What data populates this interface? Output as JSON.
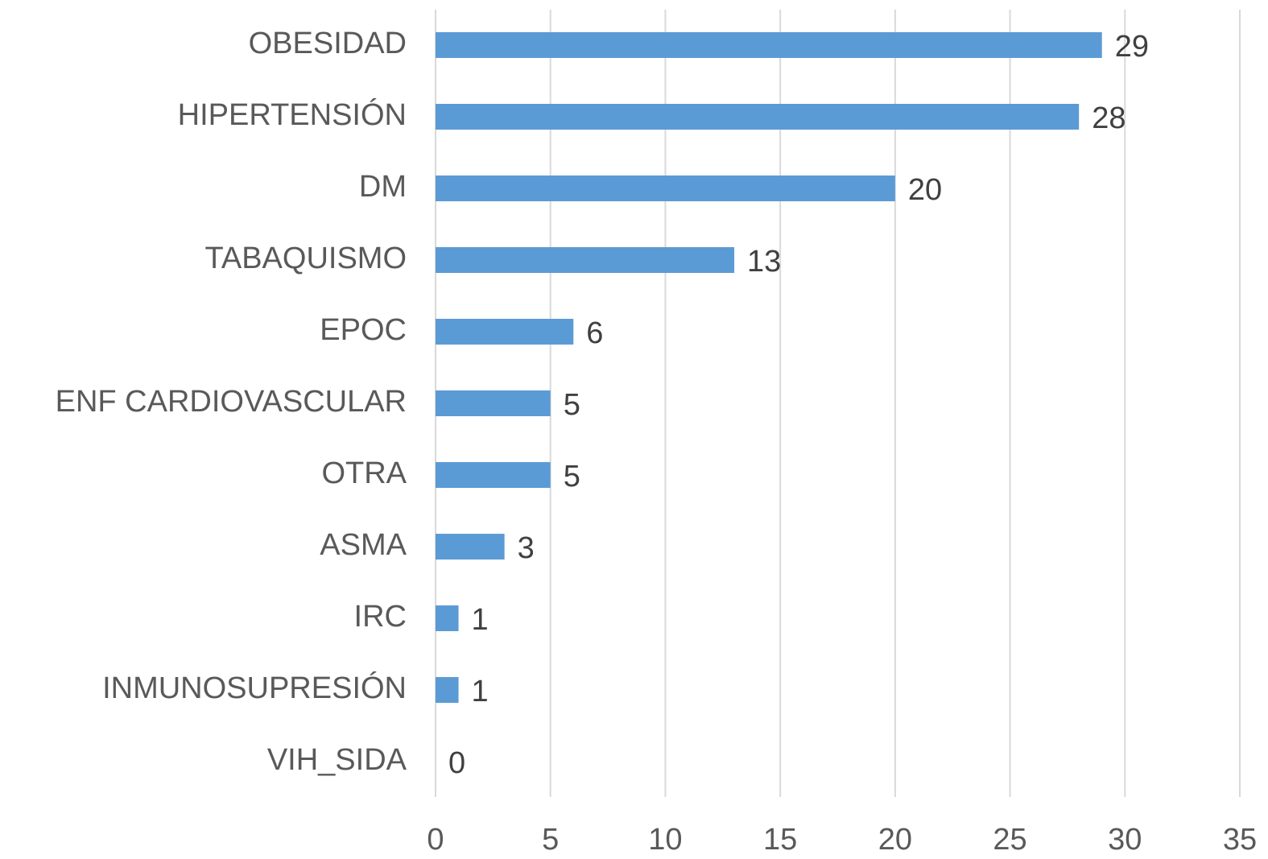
{
  "chart_data": {
    "type": "bar",
    "orientation": "horizontal",
    "categories": [
      "OBESIDAD",
      "HIPERTENSIÓN",
      "DM",
      "TABAQUISMO",
      "EPOC",
      "ENF CARDIOVASCULAR",
      "OTRA",
      "ASMA",
      "IRC",
      "INMUNOSUPRESIÓN",
      "VIH_SIDA"
    ],
    "values": [
      29,
      28,
      20,
      13,
      6,
      5,
      5,
      3,
      1,
      1,
      0
    ],
    "color": "#5b9bd5",
    "xlim": [
      0,
      35
    ],
    "xticks": [
      0,
      5,
      10,
      15,
      20,
      25,
      30,
      35
    ],
    "grid": true
  }
}
